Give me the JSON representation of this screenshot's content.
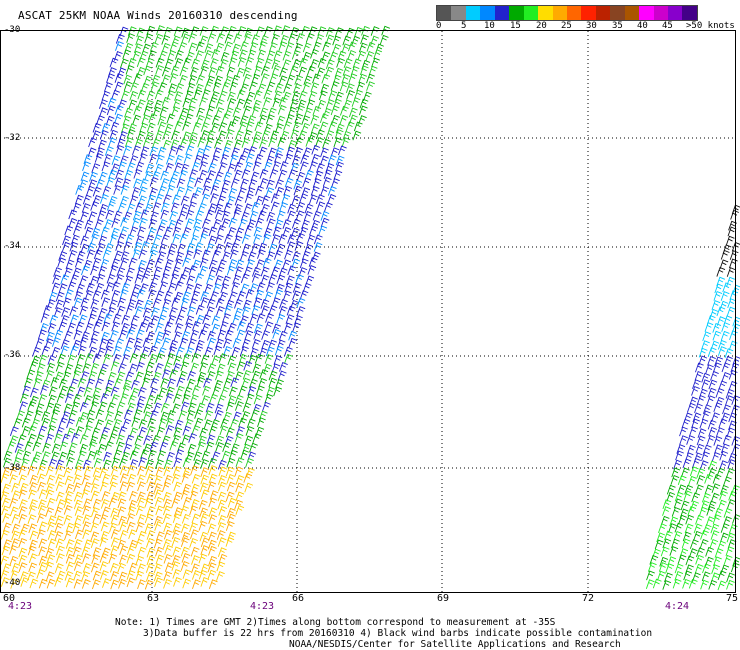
{
  "title": "ASCAT 25KM NOAA Winds 20160310 descending",
  "colorbar": {
    "colors": [
      "#555555",
      "#888888",
      "#00ccff",
      "#0088ff",
      "#2222cc",
      "#00aa00",
      "#22ee22",
      "#ffdd00",
      "#ffaa00",
      "#ff6600",
      "#ff2200",
      "#bb2200",
      "#884422",
      "#aa5500",
      "#ff00ff",
      "#cc00cc",
      "#8800cc",
      "#440088"
    ],
    "labels": [
      "0",
      "5",
      "10",
      "15",
      "20",
      "25",
      "30",
      "35",
      "40",
      "45",
      ">50 knots"
    ]
  },
  "axes": {
    "lat_labels": [
      "-30",
      "-32",
      "-34",
      "-36",
      "-38",
      "-40"
    ],
    "lon_labels": [
      "60",
      "63",
      "66",
      "69",
      "72",
      "75"
    ],
    "time_labels": [
      "4:23",
      "4:23",
      "4:24"
    ]
  },
  "notes": {
    "line1": "Note: 1) Times are GMT 2)Times along bottom correspond to measurement at -35S",
    "line2": "3)Data buffer is 22 hrs from 20160310 4) Black wind barbs indicate possible contamination",
    "line3": "NOAA/NESDIS/Center for Satellite Applications and Research"
  }
}
